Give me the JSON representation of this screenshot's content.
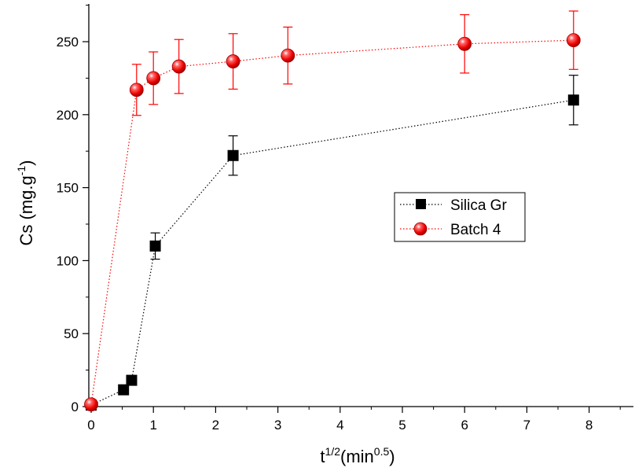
{
  "chart_data": {
    "type": "scatter",
    "xlabel": {
      "base": "t",
      "base_sup": "1/2",
      "unit_open": "(min",
      "unit_sup": "0.5",
      "unit_close": ")"
    },
    "ylabel": {
      "base": "Cs (mg.g",
      "sup": "-1",
      "close": ")"
    },
    "xlim": [
      0,
      8.5
    ],
    "ylim": [
      0,
      275
    ],
    "x_ticks": [
      0,
      1,
      2,
      3,
      4,
      5,
      6,
      7,
      8
    ],
    "y_ticks": [
      0,
      50,
      100,
      150,
      200,
      250
    ],
    "grid": false,
    "legend_position": "center-right",
    "series": [
      {
        "name": "Silica Gr",
        "marker": "square",
        "color": "#000000",
        "line_style": "dotted",
        "points": [
          {
            "x": 0.0,
            "y": 1,
            "err": null
          },
          {
            "x": 0.52,
            "y": 11.5,
            "err": null
          },
          {
            "x": 0.65,
            "y": 18,
            "err": null
          },
          {
            "x": 1.03,
            "y": 110,
            "err": 9
          },
          {
            "x": 2.28,
            "y": 172,
            "err": 13.5
          },
          {
            "x": 7.75,
            "y": 210,
            "err": 17
          }
        ]
      },
      {
        "name": "Batch 4",
        "marker": "sphere",
        "color": "#ff0000",
        "line_style": "dotted",
        "points": [
          {
            "x": 0.0,
            "y": 1.5,
            "err": null
          },
          {
            "x": 0.73,
            "y": 217,
            "err": 17.5
          },
          {
            "x": 1.0,
            "y": 225,
            "err": 18
          },
          {
            "x": 1.41,
            "y": 233,
            "err": 18.5
          },
          {
            "x": 2.28,
            "y": 236.5,
            "err": 19
          },
          {
            "x": 3.16,
            "y": 240.5,
            "err": 19.5
          },
          {
            "x": 6.0,
            "y": 248.5,
            "err": 20
          },
          {
            "x": 7.75,
            "y": 251,
            "err": 20
          }
        ]
      }
    ]
  }
}
